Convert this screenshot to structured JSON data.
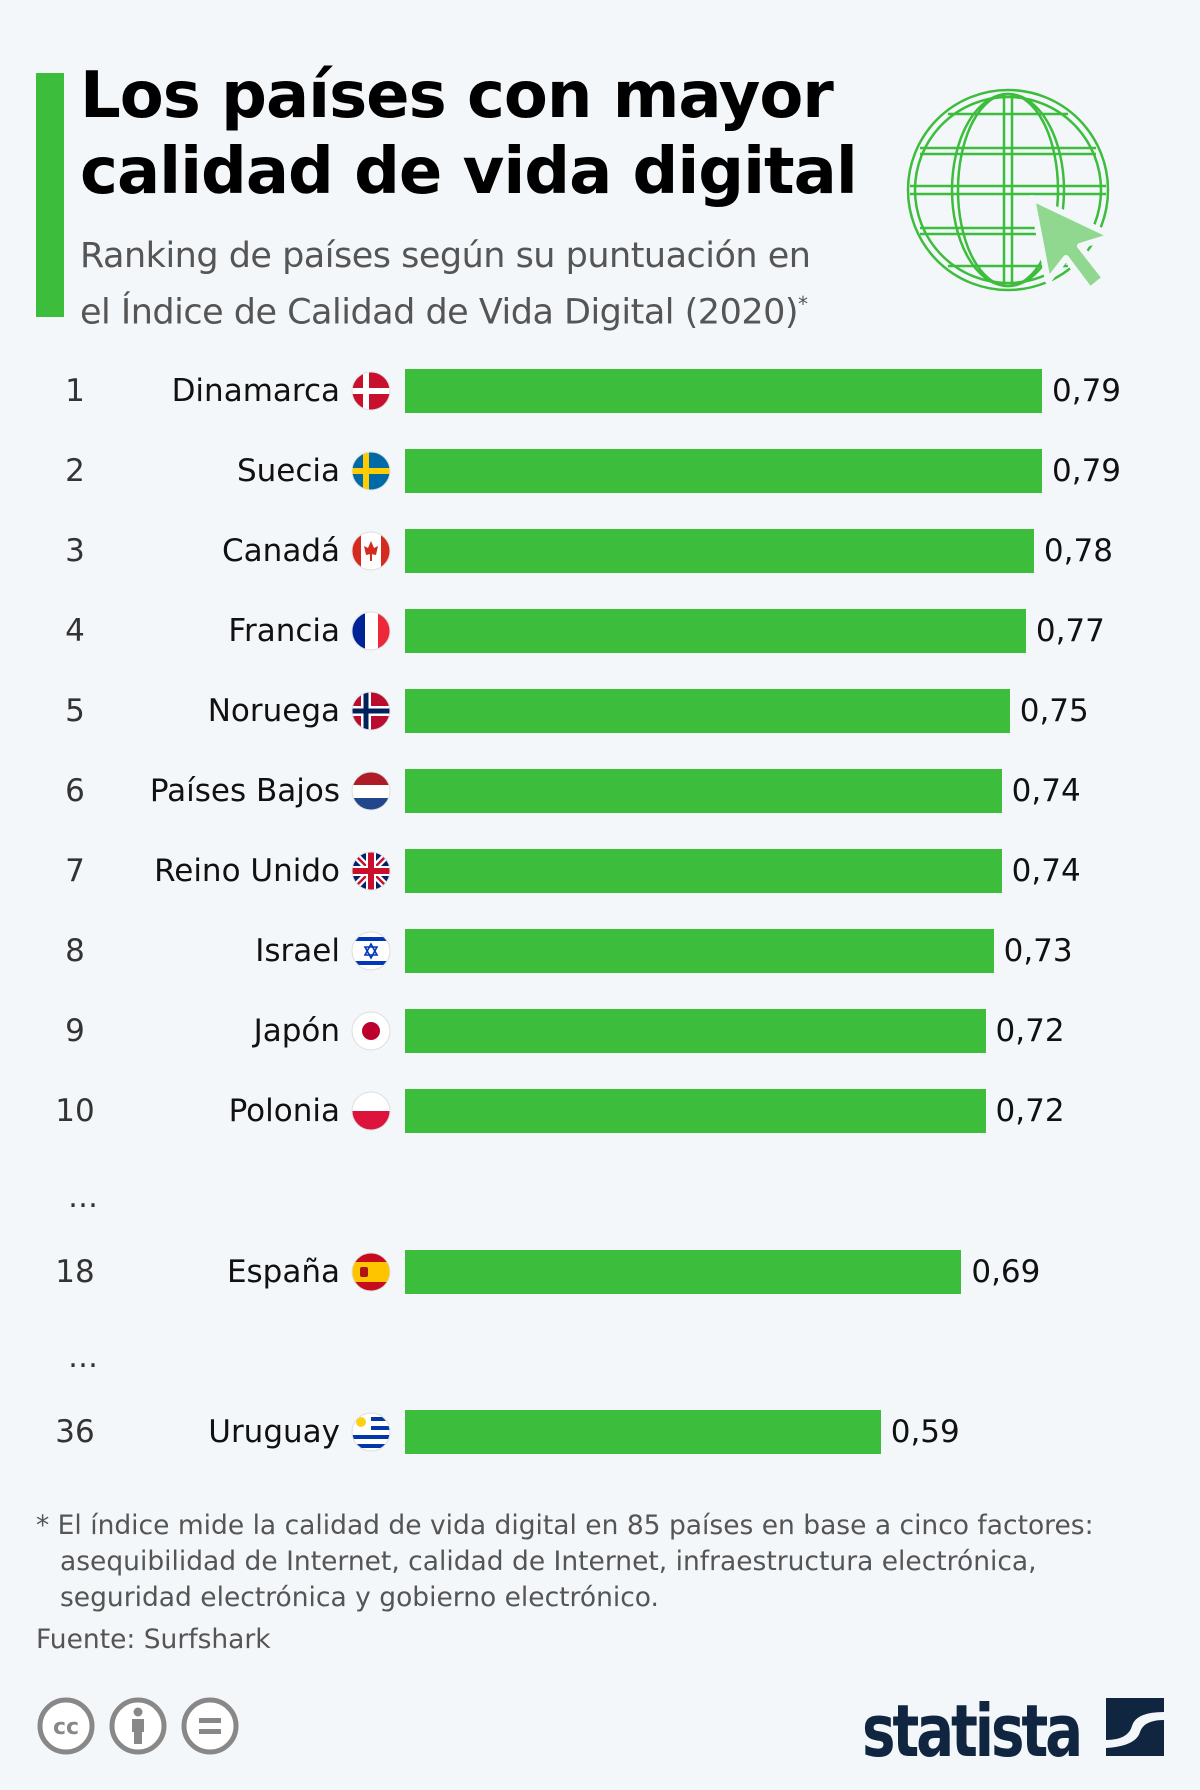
{
  "header": {
    "title_line1": "Los países con mayor",
    "title_line2": "calidad de vida digital",
    "subtitle_line1": "Ranking de países según su puntuación en",
    "subtitle_line2": "el Índice de Calidad de Vida Digital (2020)",
    "subtitle_mark": "*",
    "icon": "globe-cursor-icon"
  },
  "colors": {
    "accent": "#3cbd3c",
    "cursor": "#90d890",
    "logo": "#0f2540"
  },
  "chart_data": {
    "type": "bar",
    "orientation": "horizontal",
    "categories": [
      "Dinamarca",
      "Suecia",
      "Canadá",
      "Francia",
      "Noruega",
      "Países Bajos",
      "Reino Unido",
      "Israel",
      "Japón",
      "Polonia",
      "España",
      "Uruguay"
    ],
    "ranks": [
      "1",
      "2",
      "3",
      "4",
      "5",
      "6",
      "7",
      "8",
      "9",
      "10",
      "18",
      "36"
    ],
    "values": [
      0.79,
      0.79,
      0.78,
      0.77,
      0.75,
      0.74,
      0.74,
      0.73,
      0.72,
      0.72,
      0.69,
      0.59
    ],
    "value_labels": [
      "0,79",
      "0,79",
      "0,78",
      "0,77",
      "0,75",
      "0,74",
      "0,74",
      "0,73",
      "0,72",
      "0,72",
      "0,69",
      "0,59"
    ],
    "flags": [
      "dk",
      "se",
      "ca",
      "fr",
      "no",
      "nl",
      "gb",
      "il",
      "jp",
      "pl",
      "es",
      "uy"
    ],
    "gaps": [
      "…",
      "…"
    ],
    "xlim": [
      0,
      0.79
    ]
  },
  "footer": {
    "note_line1": "* El índice mide la calidad de vida digital en 85 países en base a cinco factores:",
    "note_line2": "asequibilidad de Internet, calidad de Internet, infraestructura electrónica,",
    "note_line3": "seguridad electrónica y gobierno electrónico.",
    "source": "Fuente: Surfshark",
    "license_icons": [
      "cc-icon",
      "by-icon",
      "nd-icon"
    ],
    "logo_text": "statista"
  }
}
